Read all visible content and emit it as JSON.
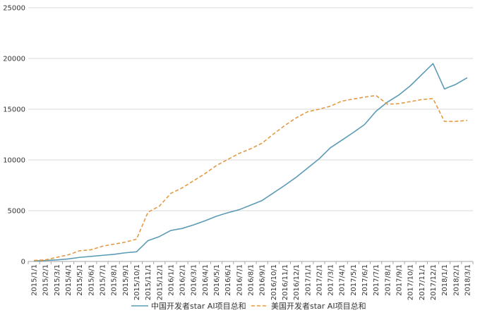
{
  "chart_data": {
    "type": "line",
    "title": "",
    "xlabel": "",
    "ylabel": "",
    "ylim": [
      0,
      25000
    ],
    "yticks": [
      "0",
      "5000",
      "10000",
      "15000",
      "20000",
      "25000"
    ],
    "grid": "horizontal",
    "legend_position": "bottom",
    "categories": [
      "2015/1/1",
      "2015/2/1",
      "2015/3/1",
      "2015/4/1",
      "2015/5/1",
      "2015/6/1",
      "2015/7/1",
      "2015/8/1",
      "2015/9/1",
      "2015/10/1",
      "2015/11/1",
      "2015/12/1",
      "2016/1/1",
      "2016/2/1",
      "2016/3/1",
      "2016/4/1",
      "2016/5/1",
      "2016/6/1",
      "2016/7/1",
      "2016/8/1",
      "2016/9/1",
      "2016/10/1",
      "2016/11/1",
      "2016/12/1",
      "2017/1/1",
      "2017/2/1",
      "2017/3/1",
      "2017/4/1",
      "2017/5/1",
      "2017/6/1",
      "2017/7/1",
      "2017/8/1",
      "2017/9/1",
      "2017/10/1",
      "2017/11/1",
      "2017/12/1",
      "2018/1/1",
      "2018/2/1",
      "2018/3/1"
    ],
    "series": [
      {
        "name": "中国开发者star AI项目总和",
        "color": "#5b9bb5",
        "style": "solid",
        "values": [
          50,
          100,
          150,
          250,
          400,
          500,
          600,
          700,
          850,
          950,
          2050,
          2450,
          3050,
          3250,
          3600,
          4000,
          4450,
          4800,
          5100,
          5550,
          6000,
          6750,
          7500,
          8300,
          9200,
          10100,
          11200,
          11950,
          12700,
          13500,
          14800,
          15700,
          16400,
          17300,
          18400,
          19500,
          17000,
          17450,
          18100
        ]
      },
      {
        "name": "美国开发者star AI项目总和",
        "color": "#e39a44",
        "style": "dashed",
        "values": [
          100,
          150,
          400,
          650,
          1050,
          1150,
          1500,
          1700,
          1900,
          2200,
          4850,
          5450,
          6700,
          7250,
          7950,
          8650,
          9450,
          10050,
          10650,
          11100,
          11650,
          12550,
          13400,
          14150,
          14750,
          15000,
          15300,
          15800,
          16000,
          16200,
          16350,
          15500,
          15550,
          15750,
          15950,
          16050,
          13800,
          13800,
          13900
        ]
      }
    ]
  }
}
